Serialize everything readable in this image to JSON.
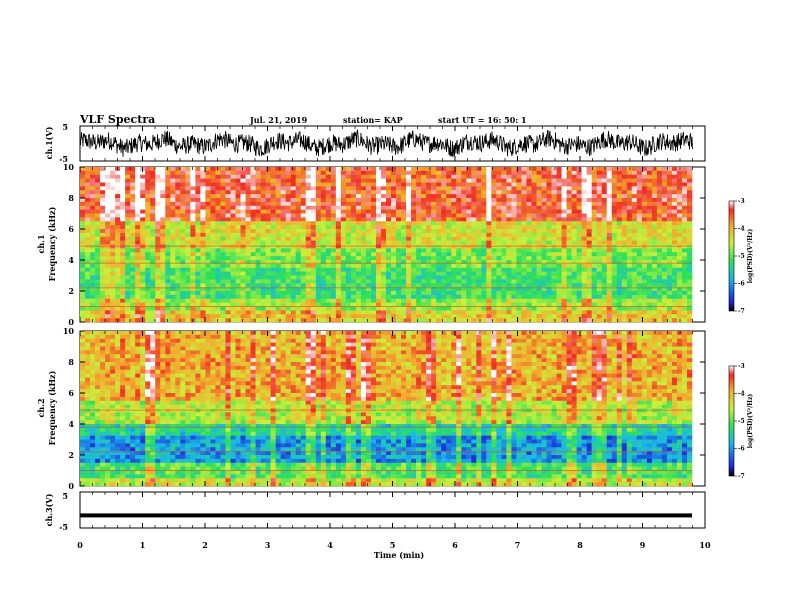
{
  "header": {
    "title": "VLF Spectra",
    "date": "Jul. 21, 2019",
    "station": "station= KAP",
    "start": "start UT =   16: 50: 1"
  },
  "colorbar": {
    "label": "log(PSD)(V²/Hz)",
    "ticks": [
      "-3",
      "-4",
      "-5",
      "-6",
      "-7"
    ],
    "stops": [
      "#000000",
      "#1e22d6",
      "#19b8e8",
      "#2ee05a",
      "#c9f03a",
      "#f4a82e",
      "#ee2d24",
      "#ffffff"
    ]
  },
  "chart_data": [
    {
      "type": "line",
      "name_label": "ch.1(V)",
      "ylabel": "ch.1(V)",
      "ylim": [
        -5,
        5
      ],
      "yticks": [
        "5",
        "-5"
      ],
      "description_of_signal": "noisy waveform oscillating mostly between about -3 and 3 V",
      "x": [
        0,
        9.8
      ]
    },
    {
      "type": "heatmap",
      "ylabel": "ch.1\nFrequency (kHz)",
      "ylabel_lines": [
        "ch.1",
        "Frequency (kHz)"
      ],
      "ylim": [
        0,
        10
      ],
      "yticks": [
        "10",
        "8",
        "6",
        "4",
        "2",
        "0"
      ],
      "xlim": [
        0,
        9.8
      ],
      "z_range": [
        -7,
        -3
      ],
      "band_levels": [
        {
          "f_low": 0,
          "f_high": 0.8,
          "level": -4.3
        },
        {
          "f_low": 0.8,
          "f_high": 1.5,
          "level": -4.8
        },
        {
          "f_low": 1.5,
          "f_high": 3.5,
          "level": -5.3
        },
        {
          "f_low": 3.5,
          "f_high": 4.8,
          "level": -5.0
        },
        {
          "f_low": 4.8,
          "f_high": 6.5,
          "level": -4.5
        },
        {
          "f_low": 6.5,
          "f_high": 10,
          "level": -3.6
        }
      ]
    },
    {
      "type": "heatmap",
      "ylabel": "ch.2\nFrequency (kHz)",
      "ylabel_lines": [
        "ch.2",
        "Frequency (kHz)"
      ],
      "ylim": [
        0,
        10
      ],
      "yticks": [
        "10",
        "8",
        "6",
        "4",
        "2",
        "0"
      ],
      "xlim": [
        0,
        9.8
      ],
      "z_range": [
        -7,
        -3
      ],
      "band_levels": [
        {
          "f_low": 0,
          "f_high": 0.6,
          "level": -4.6
        },
        {
          "f_low": 0.6,
          "f_high": 1.6,
          "level": -5.2
        },
        {
          "f_low": 1.6,
          "f_high": 3.2,
          "level": -6.1
        },
        {
          "f_low": 3.2,
          "f_high": 4.0,
          "level": -5.6
        },
        {
          "f_low": 4.0,
          "f_high": 5.5,
          "level": -4.7
        },
        {
          "f_low": 5.5,
          "f_high": 10,
          "level": -4.1
        }
      ]
    },
    {
      "type": "line",
      "ylabel": "ch.3(V)",
      "ylim": [
        -5,
        5
      ],
      "yticks": [
        "5",
        "-5"
      ],
      "constant_value": -1.5,
      "x": [
        0,
        9.8
      ]
    }
  ],
  "xaxis": {
    "label": "Time (min)",
    "ticks": [
      "0",
      "1",
      "2",
      "3",
      "4",
      "5",
      "6",
      "7",
      "8",
      "9",
      "10"
    ],
    "xlim": [
      0,
      10
    ]
  }
}
